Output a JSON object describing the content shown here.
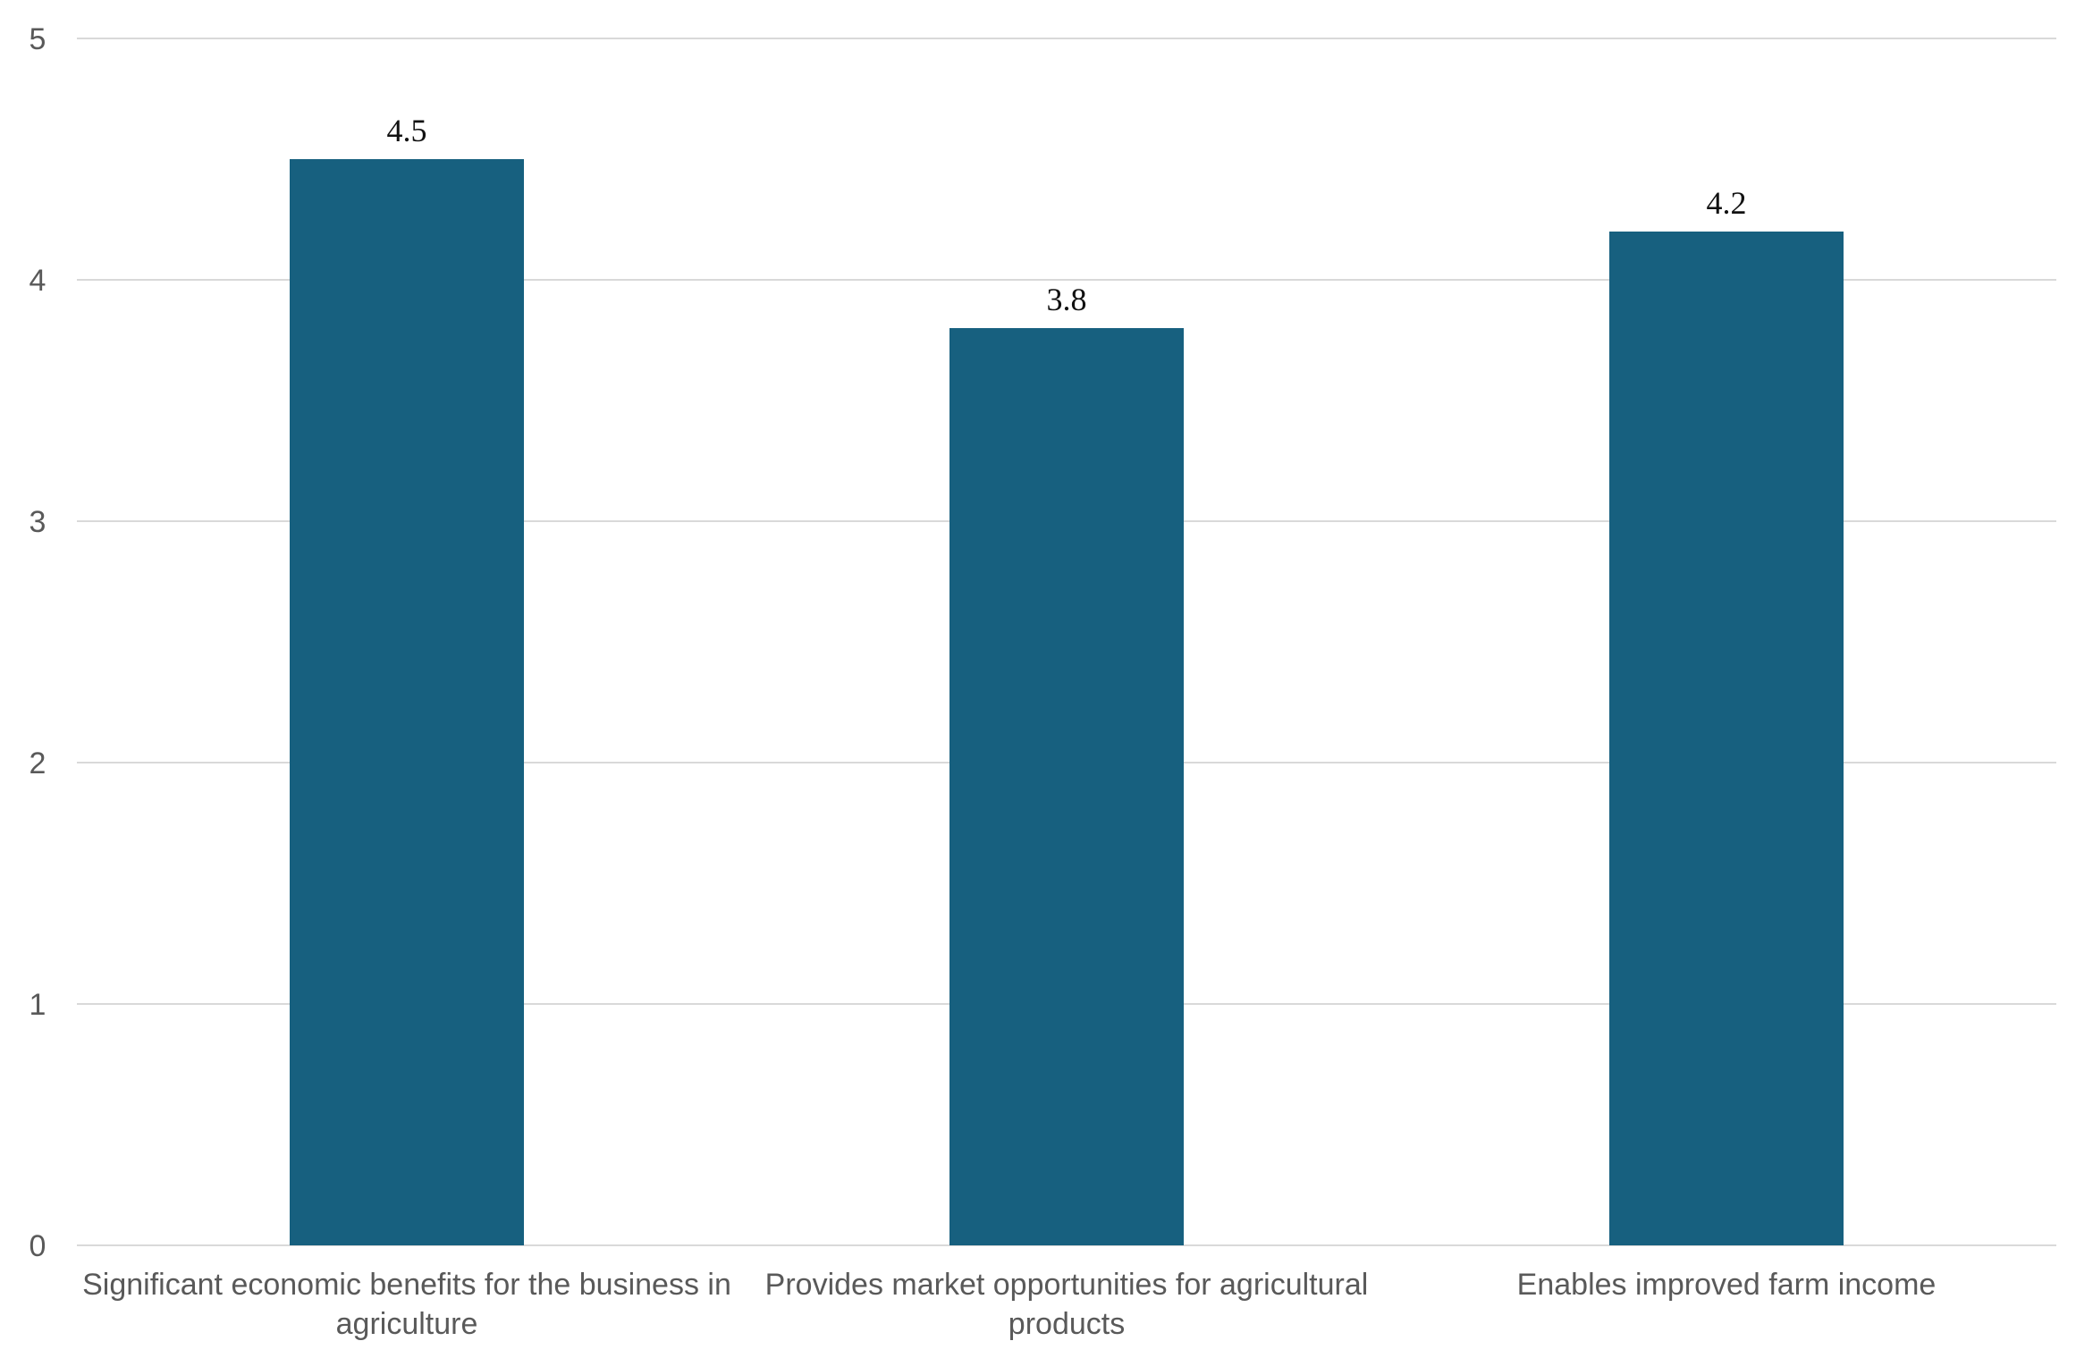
{
  "chart_data": {
    "type": "bar",
    "categories": [
      [
        "Significant economic benefits for the business in",
        "agriculture"
      ],
      [
        "Provides market opportunities for agricultural",
        "products"
      ],
      [
        "Enables improved farm income"
      ]
    ],
    "values": [
      4.5,
      3.8,
      4.2
    ],
    "data_labels": [
      "4.5",
      "3.8",
      "4.2"
    ],
    "ylim": [
      0,
      5
    ],
    "yticks": [
      "0",
      "1",
      "2",
      "3",
      "4",
      "5"
    ],
    "grid": true,
    "legend": "none",
    "bar_color": "#17607f",
    "grid_color": "#d9d9d9",
    "title": "",
    "xlabel": "",
    "ylabel": ""
  }
}
